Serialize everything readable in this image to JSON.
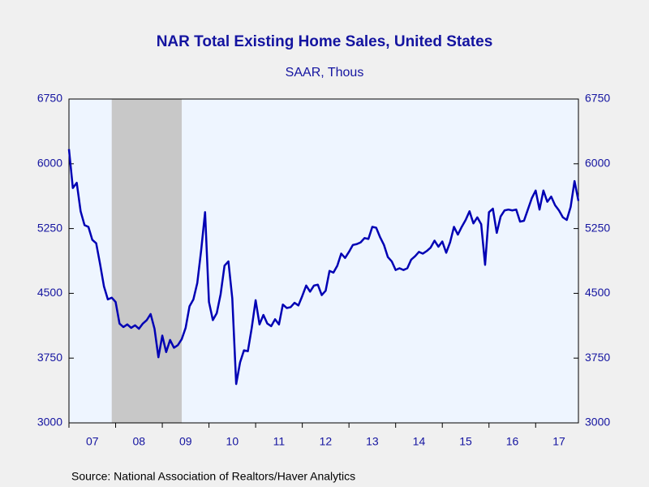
{
  "chart_data": {
    "type": "line",
    "title": "NAR Total Existing Home Sales, United States",
    "subtitle": "SAAR, Thous",
    "source": "Source:  National Association of Realtors/Haver Analytics",
    "x": [
      "2007-01",
      "2007-02",
      "2007-03",
      "2007-04",
      "2007-05",
      "2007-06",
      "2007-07",
      "2007-08",
      "2007-09",
      "2007-10",
      "2007-11",
      "2007-12",
      "2008-01",
      "2008-02",
      "2008-03",
      "2008-04",
      "2008-05",
      "2008-06",
      "2008-07",
      "2008-08",
      "2008-09",
      "2008-10",
      "2008-11",
      "2008-12",
      "2009-01",
      "2009-02",
      "2009-03",
      "2009-04",
      "2009-05",
      "2009-06",
      "2009-07",
      "2009-08",
      "2009-09",
      "2009-10",
      "2009-11",
      "2009-12",
      "2010-01",
      "2010-02",
      "2010-03",
      "2010-04",
      "2010-05",
      "2010-06",
      "2010-07",
      "2010-08",
      "2010-09",
      "2010-10",
      "2010-11",
      "2010-12",
      "2011-01",
      "2011-02",
      "2011-03",
      "2011-04",
      "2011-05",
      "2011-06",
      "2011-07",
      "2011-08",
      "2011-09",
      "2011-10",
      "2011-11",
      "2011-12",
      "2012-01",
      "2012-02",
      "2012-03",
      "2012-04",
      "2012-05",
      "2012-06",
      "2012-07",
      "2012-08",
      "2012-09",
      "2012-10",
      "2012-11",
      "2012-12",
      "2013-01",
      "2013-02",
      "2013-03",
      "2013-04",
      "2013-05",
      "2013-06",
      "2013-07",
      "2013-08",
      "2013-09",
      "2013-10",
      "2013-11",
      "2013-12",
      "2014-01",
      "2014-02",
      "2014-03",
      "2014-04",
      "2014-05",
      "2014-06",
      "2014-07",
      "2014-08",
      "2014-09",
      "2014-10",
      "2014-11",
      "2014-12",
      "2015-01",
      "2015-02",
      "2015-03",
      "2015-04",
      "2015-05",
      "2015-06",
      "2015-07",
      "2015-08",
      "2015-09",
      "2015-10",
      "2015-11",
      "2015-12",
      "2016-01",
      "2016-02",
      "2016-03",
      "2016-04",
      "2016-05",
      "2016-06",
      "2016-07",
      "2016-08",
      "2016-09",
      "2016-10",
      "2016-11",
      "2016-12",
      "2017-01",
      "2017-02",
      "2017-03",
      "2017-04",
      "2017-05",
      "2017-06",
      "2017-07",
      "2017-08",
      "2017-09",
      "2017-10",
      "2017-11",
      "2017-12"
    ],
    "series": [
      {
        "name": "Total Existing Home Sales",
        "color": "#0000b4",
        "values": [
          6170,
          5720,
          5780,
          5450,
          5290,
          5270,
          5120,
          5080,
          4840,
          4580,
          4430,
          4450,
          4400,
          4150,
          4110,
          4140,
          4100,
          4130,
          4090,
          4150,
          4190,
          4260,
          4090,
          3760,
          4010,
          3820,
          3960,
          3870,
          3900,
          3970,
          4100,
          4350,
          4430,
          4620,
          5000,
          5440,
          4400,
          4190,
          4270,
          4490,
          4820,
          4870,
          4440,
          3450,
          3700,
          3840,
          3830,
          4100,
          4420,
          4140,
          4250,
          4150,
          4120,
          4200,
          4140,
          4370,
          4330,
          4340,
          4390,
          4360,
          4470,
          4590,
          4520,
          4590,
          4600,
          4480,
          4530,
          4760,
          4740,
          4820,
          4960,
          4910,
          4980,
          5060,
          5070,
          5090,
          5140,
          5130,
          5270,
          5260,
          5150,
          5060,
          4920,
          4870,
          4770,
          4790,
          4770,
          4790,
          4890,
          4930,
          4980,
          4960,
          4990,
          5030,
          5110,
          5040,
          5100,
          4970,
          5090,
          5270,
          5180,
          5270,
          5350,
          5450,
          5310,
          5380,
          5300,
          4830,
          5440,
          5480,
          5200,
          5390,
          5460,
          5470,
          5460,
          5470,
          5330,
          5340,
          5470,
          5600,
          5690,
          5470,
          5690,
          5560,
          5620,
          5520,
          5460,
          5380,
          5350,
          5500,
          5800,
          5570
        ]
      }
    ],
    "xlim": [
      "2007-01",
      "2017-12"
    ],
    "xticks": [
      {
        "value": "2007",
        "label": "07"
      },
      {
        "value": "2008",
        "label": "08"
      },
      {
        "value": "2009",
        "label": "09"
      },
      {
        "value": "2010",
        "label": "10"
      },
      {
        "value": "2011",
        "label": "11"
      },
      {
        "value": "2012",
        "label": "12"
      },
      {
        "value": "2013",
        "label": "13"
      },
      {
        "value": "2014",
        "label": "14"
      },
      {
        "value": "2015",
        "label": "15"
      },
      {
        "value": "2016",
        "label": "16"
      },
      {
        "value": "2017",
        "label": "17"
      }
    ],
    "ylim": [
      3000,
      6750
    ],
    "yticks": [
      3000,
      3750,
      4500,
      5250,
      6000,
      6750
    ],
    "y2lim": [
      3000,
      6750
    ],
    "y2ticks": [
      3000,
      3750,
      4500,
      5250,
      6000,
      6750
    ],
    "shading": [
      {
        "start": "2007-12",
        "end": "2009-06",
        "color": "#c8c8c8"
      }
    ],
    "plot_background": "#eef5ff"
  }
}
